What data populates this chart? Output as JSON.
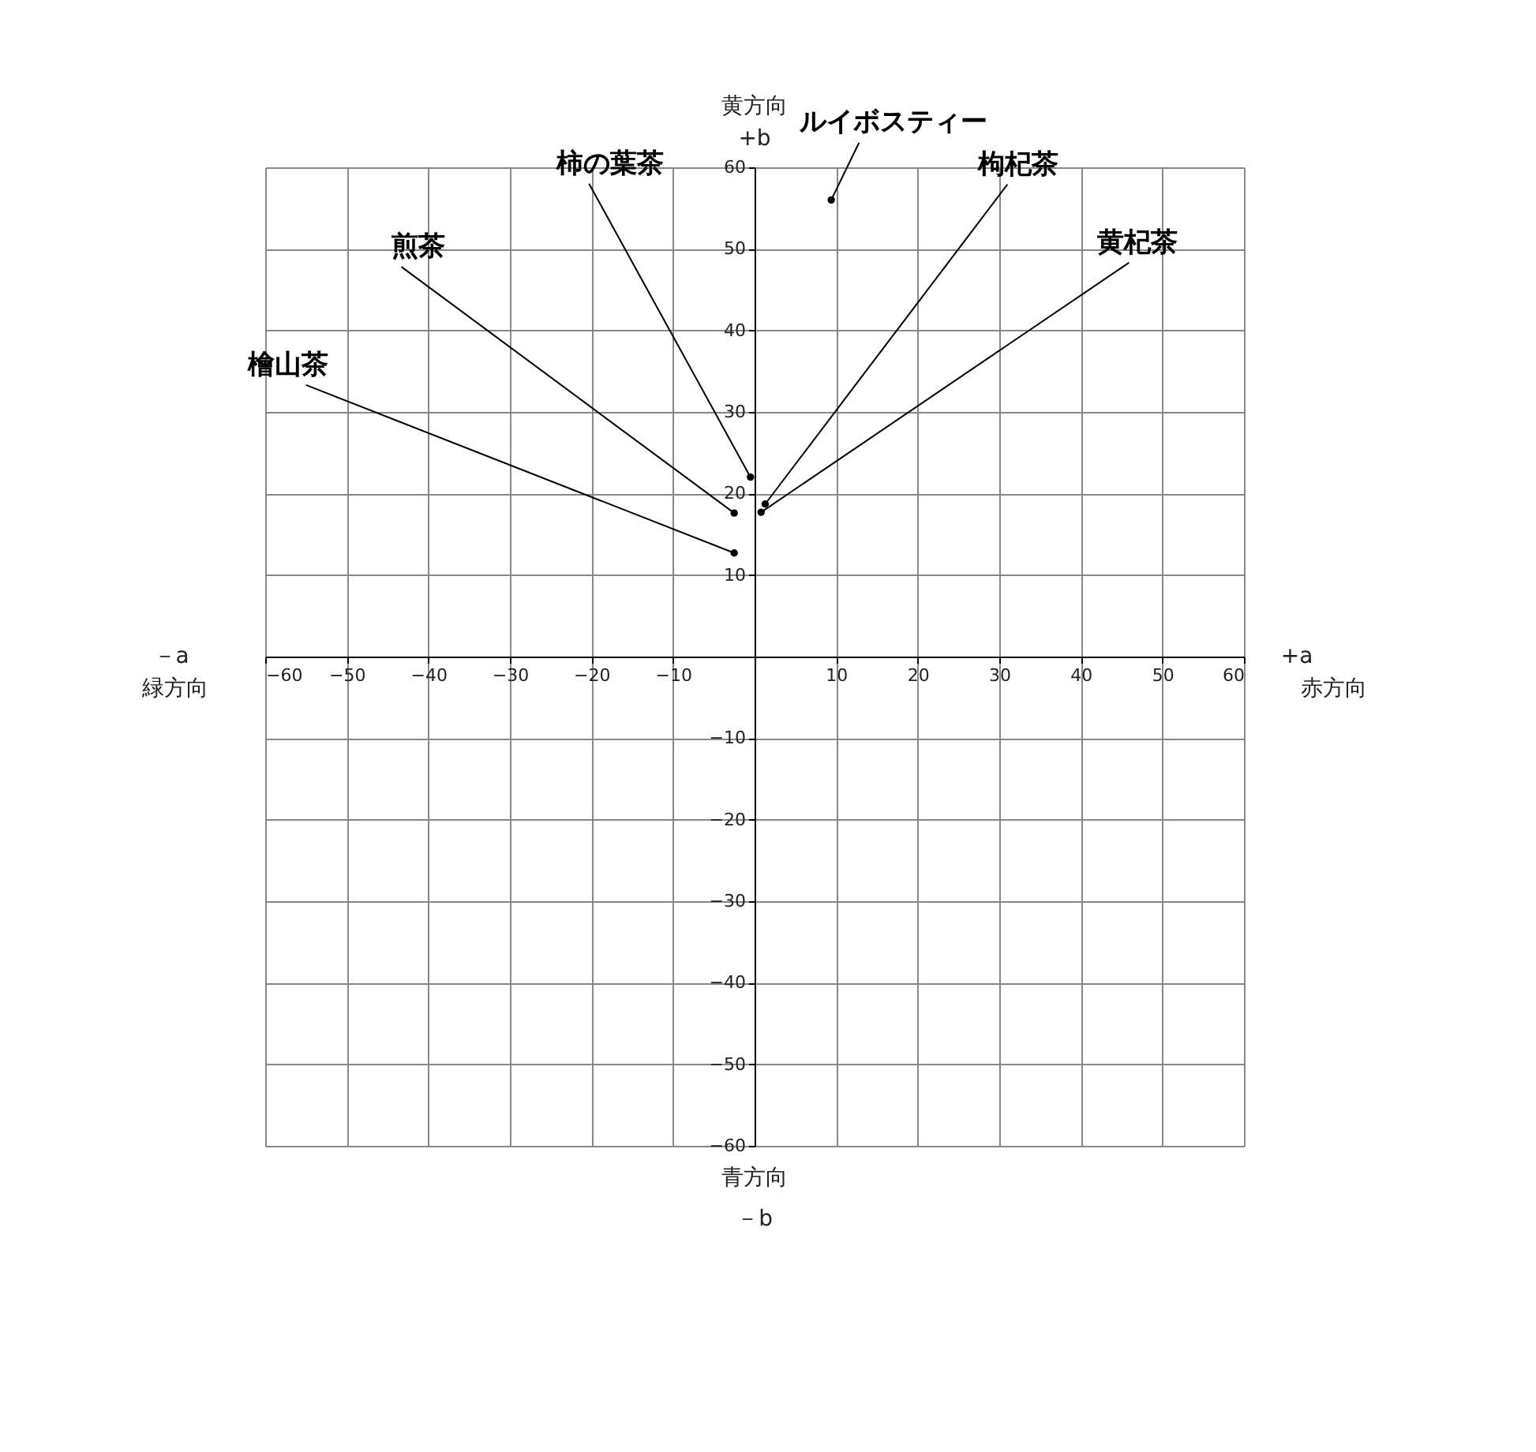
{
  "chart_data": {
    "type": "scatter",
    "xlim": [
      -60,
      60
    ],
    "ylim": [
      -60,
      60
    ],
    "xticks": [
      -60,
      -50,
      -40,
      -30,
      -20,
      -10,
      10,
      20,
      30,
      40,
      50,
      60
    ],
    "yticks": [
      -60,
      -50,
      -40,
      -30,
      -20,
      -10,
      10,
      20,
      30,
      40,
      50,
      60
    ],
    "grid": true,
    "marker": "circle",
    "annotations": [
      "黄方向",
      "+b",
      "青方向",
      "－b",
      "－a",
      "緑方向",
      "+a",
      "赤方向"
    ],
    "series": [
      {
        "name": "柿の葉茶",
        "color": "#000000",
        "x": [
          -0.5
        ],
        "values": [
          22
        ]
      },
      {
        "name": "煎茶",
        "color": "#000000",
        "x": [
          -2.5
        ],
        "values": [
          17.6
        ]
      },
      {
        "name": "檜山茶",
        "color": "#000000",
        "x": [
          -2.5
        ],
        "values": [
          12.7
        ]
      },
      {
        "name": "ルイボスティー",
        "color": "#000000",
        "x": [
          9.4
        ],
        "values": [
          56
        ]
      },
      {
        "name": "枸杞茶",
        "color": "#000000",
        "x": [
          1.3
        ],
        "values": [
          18.7
        ]
      },
      {
        "name": "黄杞茶",
        "color": "#000000",
        "x": [
          0.8
        ],
        "values": [
          17.7
        ]
      }
    ]
  }
}
